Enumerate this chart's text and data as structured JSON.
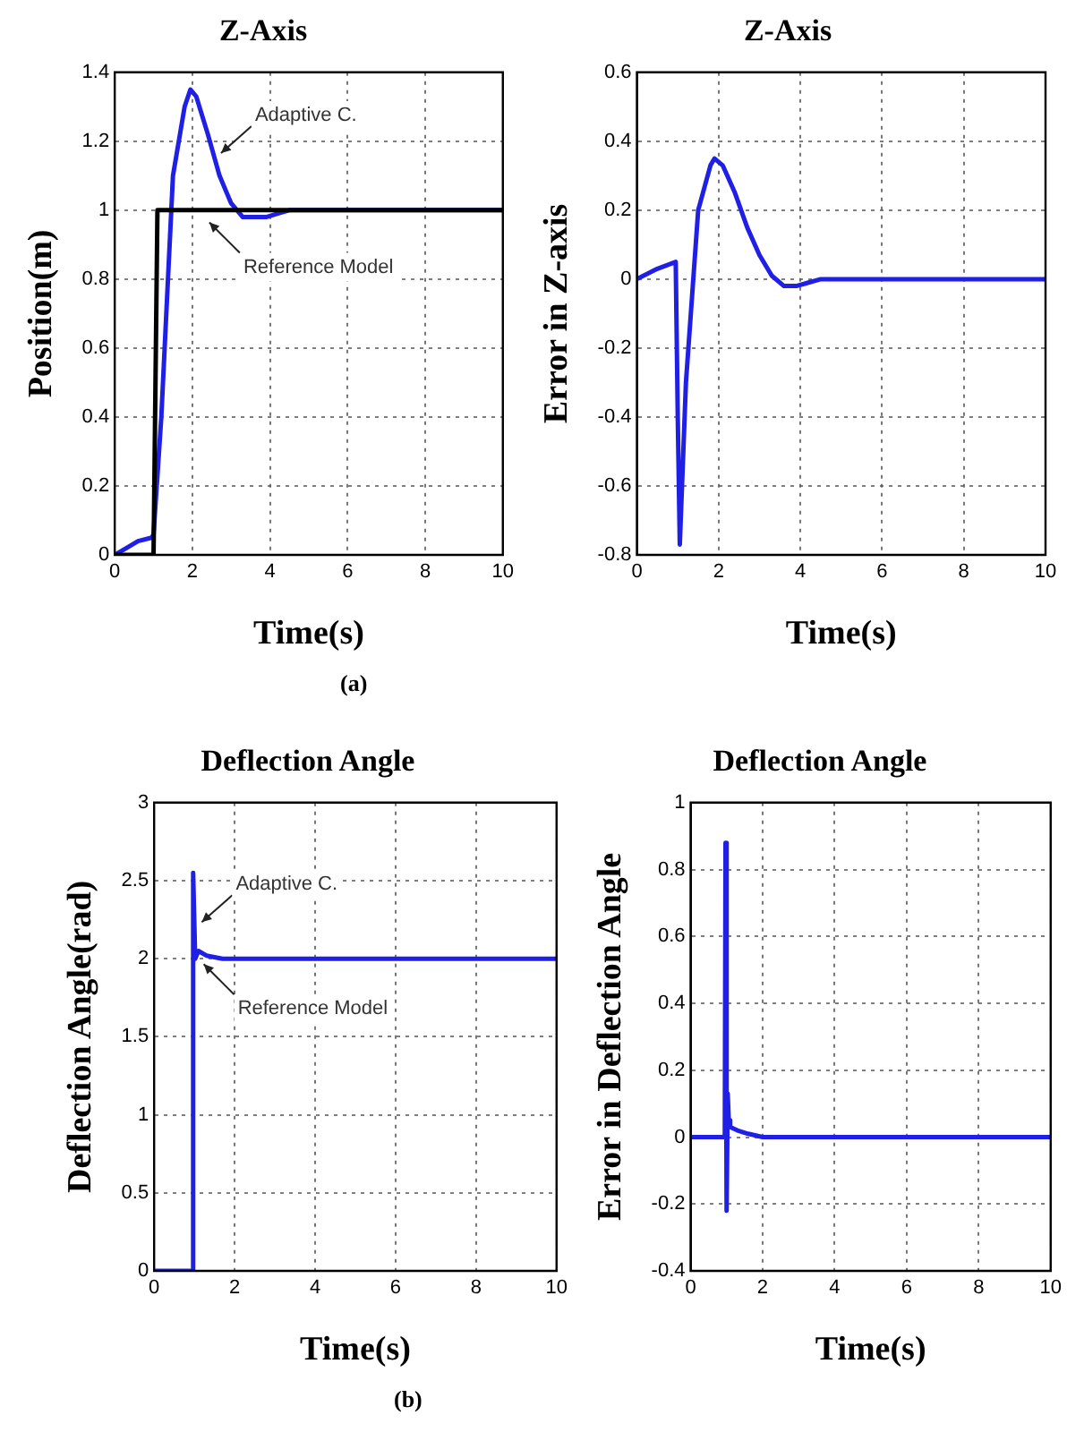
{
  "chart_data": [
    {
      "type": "line",
      "title": "Z-Axis",
      "xlabel": "Time(s)",
      "ylabel": "Position(m)",
      "xlim": [
        0,
        10
      ],
      "xticks": [
        0,
        2,
        4,
        6,
        8,
        10
      ],
      "ylim": [
        0,
        1.4
      ],
      "yticks": [
        0,
        0.2,
        0.4,
        0.6,
        0.8,
        1,
        1.2,
        1.4
      ],
      "grid": true,
      "marker": "none",
      "series": [
        {
          "color": "#000000",
          "x": [
            0,
            1.0,
            1.1,
            10
          ],
          "values": [
            0,
            0,
            1,
            1
          ]
        },
        {
          "color": "#1f1fe6",
          "x": [
            0,
            0.3,
            0.6,
            0.95,
            1.0,
            1.2,
            1.5,
            1.8,
            1.95,
            2.1,
            2.4,
            2.7,
            3.0,
            3.3,
            3.6,
            3.9,
            4.2,
            4.5,
            10
          ],
          "values": [
            0,
            0.02,
            0.04,
            0.05,
            0.06,
            0.4,
            1.1,
            1.3,
            1.35,
            1.33,
            1.22,
            1.1,
            1.02,
            0.98,
            0.98,
            0.98,
            0.99,
            1.0,
            1.0
          ]
        }
      ],
      "annotations": [
        {
          "text": "Adaptive C.",
          "x": 2.6,
          "y": 1.15
        },
        {
          "text": "Reference Model",
          "x": 2.3,
          "y": 0.98
        },
        "(a)"
      ]
    },
    {
      "type": "line",
      "title": "Z-Axis",
      "xlabel": "Time(s)",
      "ylabel": "Error in Z-axis",
      "xlim": [
        0,
        10
      ],
      "xticks": [
        0,
        2,
        4,
        6,
        8,
        10
      ],
      "ylim": [
        -0.8,
        0.6
      ],
      "yticks": [
        -0.8,
        -0.6,
        -0.4,
        -0.2,
        0,
        0.2,
        0.4,
        0.6
      ],
      "grid": true,
      "marker": "none",
      "series": [
        {
          "color": "#1f1fe6",
          "x": [
            0,
            0.5,
            0.95,
            1.0,
            1.05,
            1.2,
            1.5,
            1.8,
            1.9,
            2.1,
            2.4,
            2.7,
            3.0,
            3.3,
            3.6,
            3.9,
            4.2,
            4.5,
            10
          ],
          "values": [
            0,
            0.03,
            0.05,
            -0.4,
            -0.77,
            -0.3,
            0.2,
            0.33,
            0.35,
            0.33,
            0.25,
            0.15,
            0.07,
            0.01,
            -0.02,
            -0.02,
            -0.01,
            0,
            0
          ]
        }
      ]
    },
    {
      "type": "line",
      "title": "Deflection Angle",
      "xlabel": "Time(s)",
      "ylabel": "Deflection Angle(rad)",
      "xlim": [
        0,
        10
      ],
      "xticks": [
        0,
        2,
        4,
        6,
        8,
        10
      ],
      "ylim": [
        0,
        3
      ],
      "yticks": [
        0,
        0.5,
        1,
        1.5,
        2,
        2.5,
        3
      ],
      "grid": true,
      "marker": "none",
      "series": [
        {
          "color": "#1f1fe6",
          "x": [
            0,
            0.95,
            0.97,
            1.02,
            1.1,
            1.3,
            1.7,
            10
          ],
          "values": [
            0,
            0,
            2.55,
            2.0,
            2.05,
            2.02,
            2.0,
            2.0
          ]
        }
      ],
      "annotations": [
        {
          "text": "Adaptive C.",
          "x": 1.05,
          "y": 2.2
        },
        {
          "text": "Reference Model",
          "x": 1.1,
          "y": 2.0
        },
        "(b)"
      ]
    },
    {
      "type": "line",
      "title": "Deflection Angle",
      "xlabel": "Time(s)",
      "ylabel": "Error in Deflection Angle",
      "xlim": [
        0,
        10
      ],
      "xticks": [
        0,
        2,
        4,
        6,
        8,
        10
      ],
      "ylim": [
        -0.4,
        1
      ],
      "yticks": [
        -0.4,
        -0.2,
        0,
        0.2,
        0.4,
        0.6,
        0.8,
        1
      ],
      "grid": true,
      "marker": "none",
      "series": [
        {
          "color": "#1f1fe6",
          "x": [
            0,
            0.95,
            0.97,
            1.0,
            1.03,
            1.06,
            1.1,
            1.3,
            1.6,
            2.0,
            10
          ],
          "values": [
            0,
            0,
            0.88,
            -0.22,
            0.13,
            0.05,
            0.03,
            0.02,
            0.01,
            0,
            0
          ]
        }
      ]
    }
  ]
}
